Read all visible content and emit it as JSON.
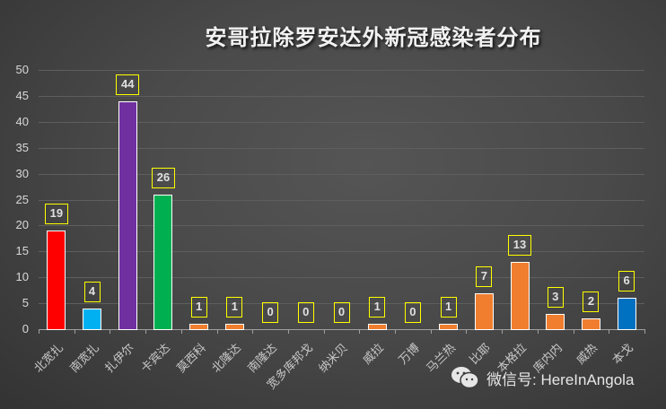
{
  "chart_data": {
    "type": "bar",
    "title": "安哥拉除罗安达外新冠感染者分布",
    "xlabel": "",
    "ylabel": "",
    "ylim": [
      0,
      50
    ],
    "yticks": [
      0,
      5,
      10,
      15,
      20,
      25,
      30,
      35,
      40,
      45,
      50
    ],
    "grid": true,
    "legend": null,
    "categories": [
      "北宽扎",
      "南宽扎",
      "扎伊尔",
      "卡宾达",
      "莫西科",
      "北隆达",
      "南隆达",
      "宽多库邦戈",
      "纳米贝",
      "威拉",
      "万博",
      "马兰热",
      "比耶",
      "本格拉",
      "库内内",
      "威热",
      "本戈"
    ],
    "values": [
      19,
      4,
      44,
      26,
      1,
      1,
      0,
      0,
      0,
      1,
      0,
      1,
      7,
      13,
      3,
      2,
      6
    ],
    "colors": [
      "#ff0000",
      "#00b0f0",
      "#7030a0",
      "#00b050",
      "#f07e2e",
      "#f07e2e",
      "#f07e2e",
      "#f07e2e",
      "#f07e2e",
      "#f07e2e",
      "#f07e2e",
      "#f07e2e",
      "#f07e2e",
      "#f07e2e",
      "#f07e2e",
      "#f07e2e",
      "#0070c0"
    ]
  },
  "watermark": {
    "text": "微信号: HereInAngola",
    "icon": "wechat-icon"
  }
}
